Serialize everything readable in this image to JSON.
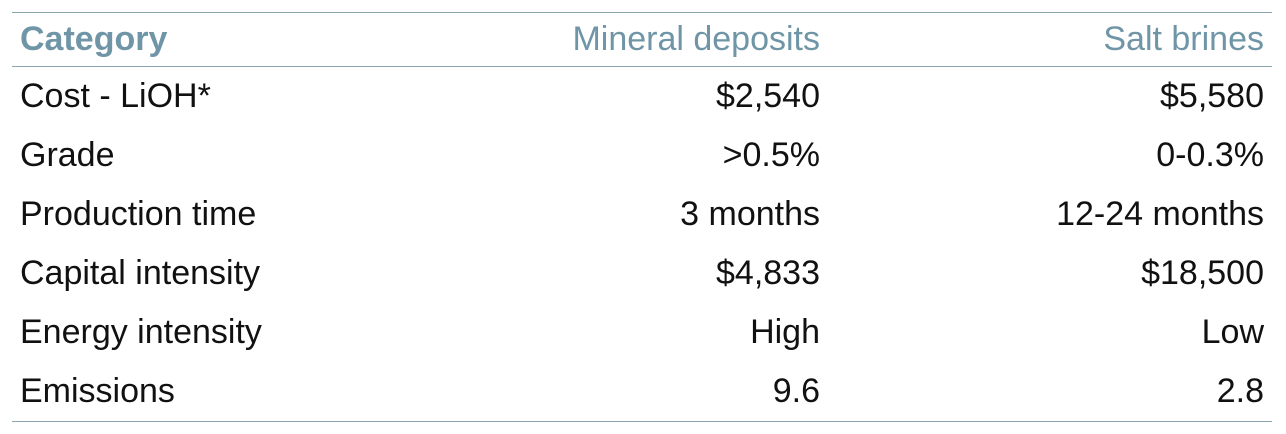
{
  "table": {
    "headers": [
      "Category",
      "Mineral deposits",
      "Salt brines"
    ],
    "rows": [
      {
        "category": "Cost - LiOH*",
        "mineral": "$2,540",
        "brine": "$5,580"
      },
      {
        "category": "Grade",
        "mineral": ">0.5%",
        "brine": "0-0.3%"
      },
      {
        "category": "Production time",
        "mineral": "3 months",
        "brine": "12-24 months"
      },
      {
        "category": "Capital intensity",
        "mineral": "$4,833",
        "brine": "$18,500"
      },
      {
        "category": "Energy intensity",
        "mineral": "High",
        "brine": "Low"
      },
      {
        "category": "Emissions",
        "mineral": "9.6",
        "brine": "2.8"
      }
    ]
  },
  "colors": {
    "header_text": "#6f95a6",
    "rule": "#8aa5b0",
    "body_text": "#111111"
  }
}
